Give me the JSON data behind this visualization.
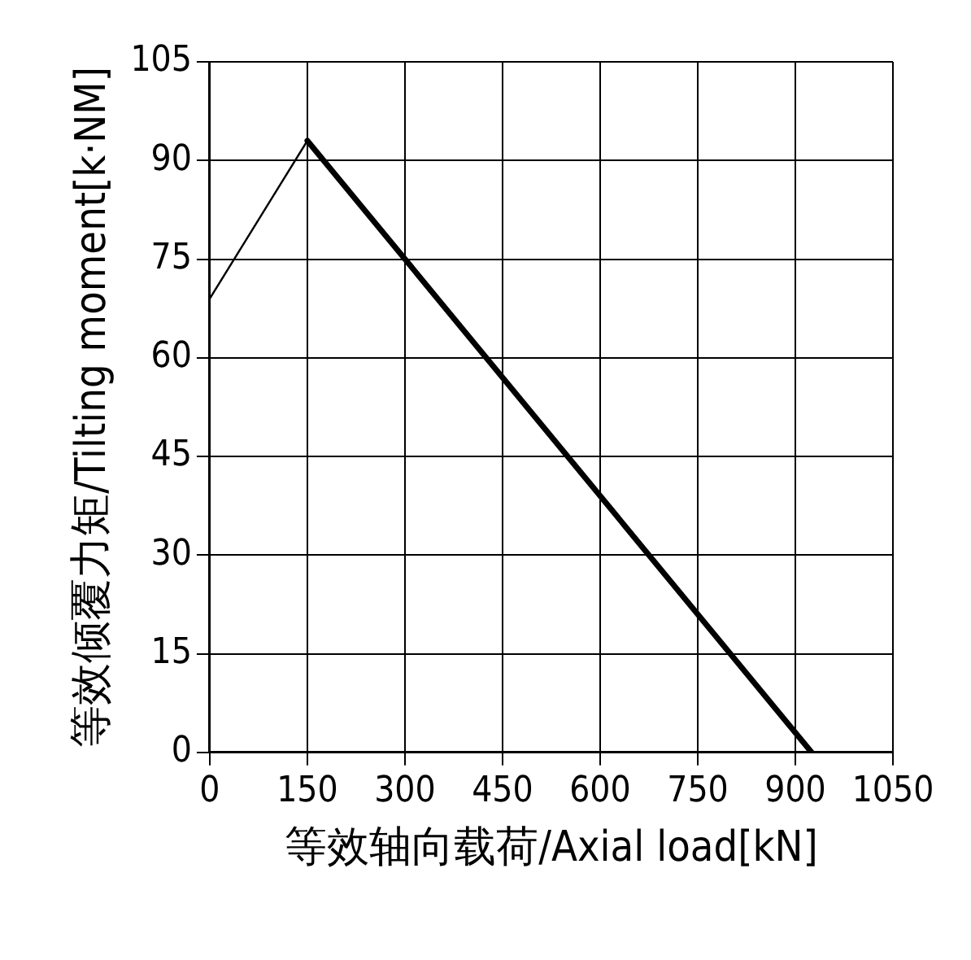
{
  "chart_data": {
    "type": "line",
    "xlabel": "等效轴向载荷/Axial load[kN]",
    "ylabel": "等效倾覆力矩/Tilting moment[k·NM]",
    "series": [
      {
        "color": "#000000",
        "x": [
          0,
          150
        ],
        "values": [
          69,
          93
        ]
      },
      {
        "color": "#000000",
        "x": [
          150,
          925
        ],
        "values": [
          93,
          0
        ]
      }
    ],
    "xlim": [
      0,
      1050
    ],
    "xticks": [
      0,
      150,
      300,
      450,
      600,
      750,
      900,
      1050
    ],
    "ylim": [
      0,
      105
    ],
    "yticks": [
      0,
      15,
      30,
      45,
      60,
      75,
      90,
      105
    ],
    "grid": true,
    "legend": false,
    "marker": "none",
    "line_style": "solid"
  }
}
